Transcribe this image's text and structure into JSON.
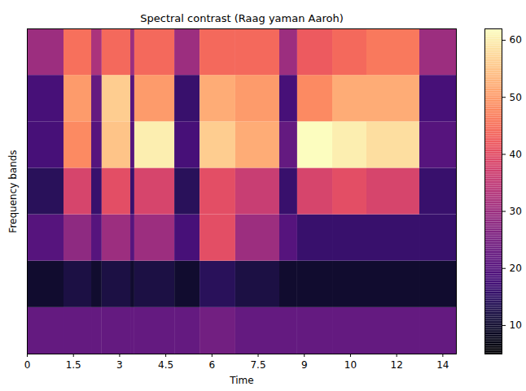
{
  "chart_data": {
    "type": "heatmap",
    "title": "Spectral contrast (Raag yaman Aaroh)",
    "x_label": "Time",
    "y_label": "Frequency bands",
    "xlim": [
      0,
      13.94
    ],
    "xticks": [
      0,
      1.5,
      3,
      4.5,
      6,
      7.5,
      9,
      {
        "value": 10.5,
        "label": "10"
      },
      {
        "value": 12,
        "label": "12"
      },
      {
        "value": 13.5,
        "label": "14"
      }
    ],
    "ylim": [
      0,
      7
    ],
    "tick_labels": "x",
    "color": "magma",
    "colorbar_range": [
      5,
      62
    ],
    "colorbar_ticks": [
      10,
      20,
      30,
      40,
      50,
      60
    ],
    "segments": [
      {
        "start": 0,
        "end": 1.19,
        "values": [
          22,
          10,
          20,
          14,
          18,
          18,
          30
        ]
      },
      {
        "start": 1.19,
        "end": 2.09,
        "values": [
          22,
          12,
          28,
          38,
          48,
          50,
          45
        ]
      },
      {
        "start": 2.09,
        "end": 2.43,
        "values": [
          22,
          10,
          20,
          16,
          20,
          22,
          32
        ]
      },
      {
        "start": 2.43,
        "end": 3.36,
        "values": [
          22,
          12,
          30,
          40,
          55,
          56,
          44
        ]
      },
      {
        "start": 3.36,
        "end": 3.49,
        "values": [
          22,
          10,
          20,
          16,
          20,
          20,
          30
        ]
      },
      {
        "start": 3.49,
        "end": 4.79,
        "values": [
          22,
          12,
          30,
          38,
          60,
          50,
          44
        ]
      },
      {
        "start": 4.79,
        "end": 5.61,
        "values": [
          22,
          10,
          18,
          14,
          18,
          16,
          30
        ]
      },
      {
        "start": 5.61,
        "end": 6.77,
        "values": [
          24,
          14,
          40,
          40,
          56,
          52,
          44
        ]
      },
      {
        "start": 6.77,
        "end": 8.2,
        "values": [
          22,
          12,
          30,
          36,
          52,
          50,
          44
        ]
      },
      {
        "start": 8.2,
        "end": 8.78,
        "values": [
          22,
          10,
          20,
          16,
          22,
          18,
          30
        ]
      },
      {
        "start": 8.78,
        "end": 9.92,
        "values": [
          22,
          10,
          16,
          38,
          62,
          48,
          42
        ]
      },
      {
        "start": 9.92,
        "end": 11.03,
        "values": [
          22,
          10,
          16,
          40,
          60,
          52,
          44
        ]
      },
      {
        "start": 11.03,
        "end": 12.75,
        "values": [
          22,
          10,
          16,
          38,
          58,
          52,
          46
        ]
      },
      {
        "start": 12.75,
        "end": 13.94,
        "values": [
          22,
          10,
          16,
          16,
          20,
          18,
          30
        ]
      }
    ]
  }
}
